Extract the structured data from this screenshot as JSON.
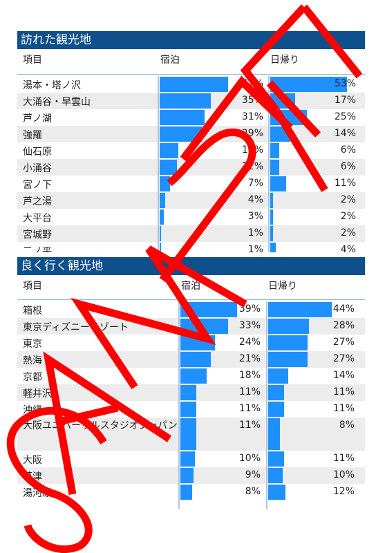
{
  "sections": [
    {
      "title": "訪れた観光地",
      "col_item": "項目",
      "col_a": "宿泊",
      "col_b": "日帰り",
      "rows": [
        {
          "name": "湯本・塔ノ沢",
          "a": 47,
          "b": 53
        },
        {
          "name": "大涌谷・早雲山",
          "a": 35,
          "b": 17
        },
        {
          "name": "芦ノ湖",
          "a": 31,
          "b": 25
        },
        {
          "name": "強羅",
          "a": 29,
          "b": 14
        },
        {
          "name": "仙石原",
          "a": 13,
          "b": 6
        },
        {
          "name": "小涌谷",
          "a": 12,
          "b": 6
        },
        {
          "name": "宮ノ下",
          "a": 7,
          "b": 11
        },
        {
          "name": "芦之湯",
          "a": 4,
          "b": 2
        },
        {
          "name": "大平台",
          "a": 3,
          "b": 2
        },
        {
          "name": "宮城野",
          "a": 1,
          "b": 2
        },
        {
          "name": "二ノ平",
          "a": 1,
          "b": 4
        }
      ]
    },
    {
      "title": "良く行く観光地",
      "col_item": "項目",
      "col_a": "宿泊",
      "col_b": "日帰り",
      "rows": [
        {
          "name": "箱根",
          "a": 39,
          "b": 44
        },
        {
          "name": "東京ディズニーリゾート",
          "a": 33,
          "b": 28
        },
        {
          "name": "東京",
          "a": 24,
          "b": 27
        },
        {
          "name": "熱海",
          "a": 21,
          "b": 27
        },
        {
          "name": "京都",
          "a": 18,
          "b": 14
        },
        {
          "name": "軽井沢",
          "a": 11,
          "b": 11
        },
        {
          "name": "沖縄",
          "a": 11,
          "b": 11
        },
        {
          "name": "大阪ユニバーサルスタジオジャパン",
          "a": 11,
          "b": 8
        },
        {
          "name": "大阪",
          "a": 10,
          "b": 11
        },
        {
          "name": "草津",
          "a": 9,
          "b": 10
        },
        {
          "name": "湯河原",
          "a": 8,
          "b": 12
        }
      ]
    }
  ],
  "watermark": "SAMPLE",
  "colors": {
    "header_bg": "#0f4f8c",
    "bar": "#1e90ff",
    "watermark": "#ff0000"
  }
}
